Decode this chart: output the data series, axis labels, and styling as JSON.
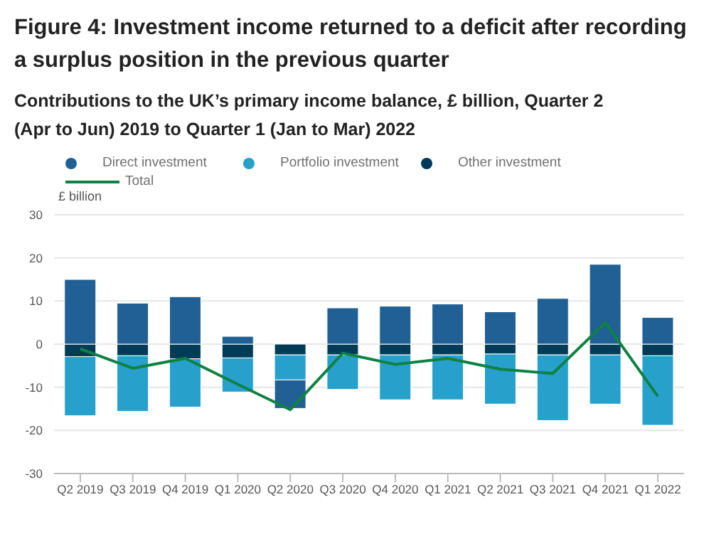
{
  "chart_data": {
    "type": "bar",
    "title": "Figure 4: Investment income returned to a deficit after recording a surplus position in the previous quarter",
    "subtitle": "Contributions to the UK’s primary income balance, £ billion, Quarter 2 (Apr to Jun) 2019 to Quarter 1 (Jan to Mar) 2022",
    "ylabel": "£ billion",
    "categories": [
      "Q2 2019",
      "Q3 2019",
      "Q4 2019",
      "Q1 2020",
      "Q2 2020",
      "Q3 2020",
      "Q4 2020",
      "Q1 2021",
      "Q2 2021",
      "Q3 2021",
      "Q4 2021",
      "Q1 2022"
    ],
    "stacked": true,
    "series": [
      {
        "name": "Other investment",
        "color": "#003c57",
        "values": [
          -2.9,
          -2.7,
          -3.4,
          -3.2,
          -2.5,
          -2.5,
          -2.5,
          -2.5,
          -2.3,
          -2.5,
          -2.5,
          -2.7
        ]
      },
      {
        "name": "Portfolio investment",
        "color": "#27a0cc",
        "values": [
          -13.7,
          -12.9,
          -11.2,
          -7.9,
          -5.8,
          -8.0,
          -10.4,
          -10.4,
          -11.6,
          -15.2,
          -11.4,
          -16.1
        ]
      },
      {
        "name": "Direct investment",
        "color": "#206095",
        "values": [
          15.0,
          9.5,
          11.0,
          1.8,
          -6.6,
          8.4,
          8.8,
          9.3,
          7.5,
          10.6,
          18.5,
          6.2
        ]
      },
      {
        "name": "Total",
        "type": "line",
        "color": "#0f8243",
        "values": [
          -1.1,
          -5.6,
          -3.3,
          -9.3,
          -15.2,
          -2.1,
          -4.7,
          -3.3,
          -5.8,
          -6.8,
          5.0,
          -12.1
        ]
      }
    ],
    "ylim": [
      -30,
      30
    ],
    "yticks": [
      -30,
      -20,
      -10,
      0,
      10,
      20,
      30
    ],
    "grid": "y",
    "legend": "top",
    "marker": "none",
    "line_style": "solid"
  }
}
